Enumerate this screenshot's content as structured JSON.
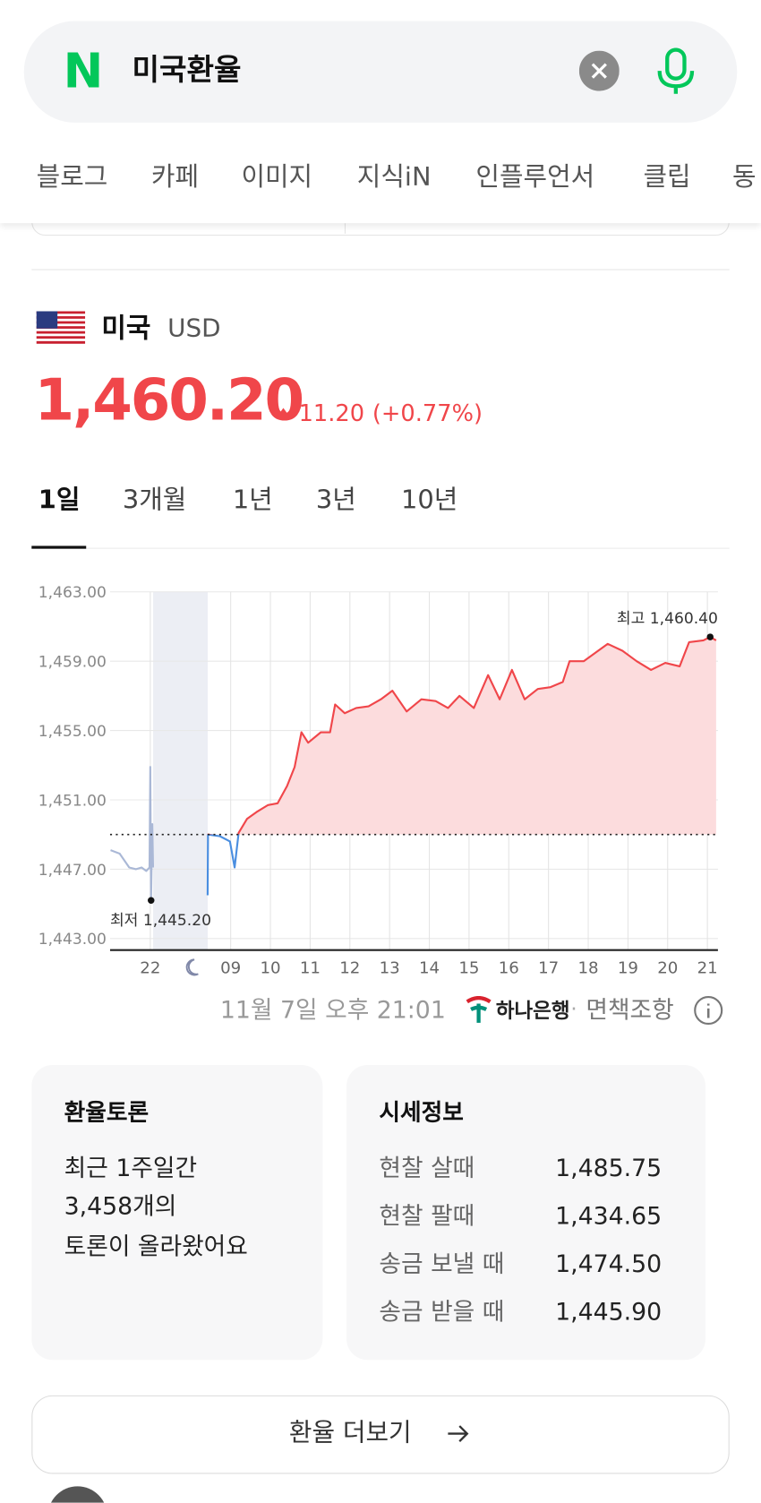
{
  "search": {
    "logo": "N",
    "query": "미국환율"
  },
  "tabs": [
    "블로그",
    "카페",
    "이미지",
    "지식iN",
    "인플루언서",
    "클립",
    "동"
  ],
  "currency": {
    "country": "미국",
    "code": "USD",
    "price": "1,460.20",
    "change": "11.20",
    "change_pct": "(+0.77%)"
  },
  "periods": [
    "1일",
    "3개월",
    "1년",
    "3년",
    "10년"
  ],
  "chart_data": {
    "type": "line",
    "ylim": [
      1443,
      1463
    ],
    "yticks": [
      {
        "value": 1443,
        "label": "1,443.00"
      },
      {
        "value": 1447,
        "label": "1,447.00"
      },
      {
        "value": 1451,
        "label": "1,451.00"
      },
      {
        "value": 1455,
        "label": "1,455.00"
      },
      {
        "value": 1459,
        "label": "1,459.00"
      },
      {
        "value": 1463,
        "label": "1,463.00"
      }
    ],
    "xticks": [
      22,
      {
        "value": 9,
        "label": "09"
      },
      10,
      11,
      12,
      13,
      14,
      15,
      16,
      17,
      18,
      19,
      20,
      21
    ],
    "grid": true,
    "reference_line": 1449,
    "series": [
      {
        "color": "#aab8d6",
        "x": [
          21.0,
          21.23,
          21.47,
          21.64,
          21.78,
          21.9,
          21.98,
          22.0,
          22.02,
          22.05,
          22.07
        ],
        "values": [
          1448.1,
          1447.9,
          1447.1,
          1447.0,
          1447.1,
          1446.9,
          1447.1,
          1452.9,
          1445.2,
          1449.6,
          1447.1
        ]
      },
      {
        "color": "#f0464a",
        "color_below": "#4a8ee0",
        "fill": "#fcdcdd",
        "x": [
          8.42,
          8.43,
          8.73,
          8.98,
          9.1,
          9.2,
          9.41,
          9.65,
          9.94,
          10.18,
          10.42,
          10.61,
          10.78,
          10.95,
          11.27,
          11.5,
          11.63,
          11.87,
          12.16,
          12.47,
          12.78,
          13.07,
          13.43,
          13.8,
          14.16,
          14.47,
          14.76,
          15.12,
          15.48,
          15.77,
          16.08,
          16.4,
          16.73,
          17.05,
          17.36,
          17.53,
          17.89,
          18.25,
          18.49,
          18.86,
          19.22,
          19.58,
          19.94,
          20.3,
          20.54,
          20.9,
          21.07,
          21.22
        ],
        "values": [
          1445.5,
          1449.0,
          1448.9,
          1448.6,
          1447.1,
          1449.1,
          1449.9,
          1450.3,
          1450.7,
          1450.8,
          1451.8,
          1452.9,
          1454.9,
          1454.3,
          1454.9,
          1454.9,
          1456.5,
          1456.0,
          1456.3,
          1456.4,
          1456.8,
          1457.3,
          1456.1,
          1456.8,
          1456.7,
          1456.3,
          1457.0,
          1456.3,
          1458.2,
          1456.8,
          1458.5,
          1456.8,
          1457.4,
          1457.5,
          1457.8,
          1459.0,
          1459.0,
          1459.6,
          1460.0,
          1459.6,
          1459.0,
          1458.5,
          1458.9,
          1458.7,
          1460.1,
          1460.2,
          1460.4,
          1460.2
        ]
      }
    ],
    "annotations": [
      {
        "text": "최고 1,460.40",
        "x": 21.07,
        "y": 1460.4
      },
      {
        "text": "최저 1,445.20",
        "x": 22.02,
        "y": 1445.2
      }
    ]
  },
  "timestamp": "11월 7일 오후 21:01",
  "source": "하나은행",
  "separator": "·",
  "disclaimer": "면책조항",
  "discussion": {
    "title": "환율토론",
    "lines": [
      "최근 1주일간",
      "3,458개의",
      "토론이 올라왔어요"
    ]
  },
  "rates": {
    "title": "시세정보",
    "rows": [
      [
        "현찰 살때",
        "1,485.75"
      ],
      [
        "현찰 팔때",
        "1,434.65"
      ],
      [
        "송금 보낼 때",
        "1,474.50"
      ],
      [
        "송금 받을 때",
        "1,445.90"
      ]
    ]
  },
  "more_button": "환율 더보기"
}
